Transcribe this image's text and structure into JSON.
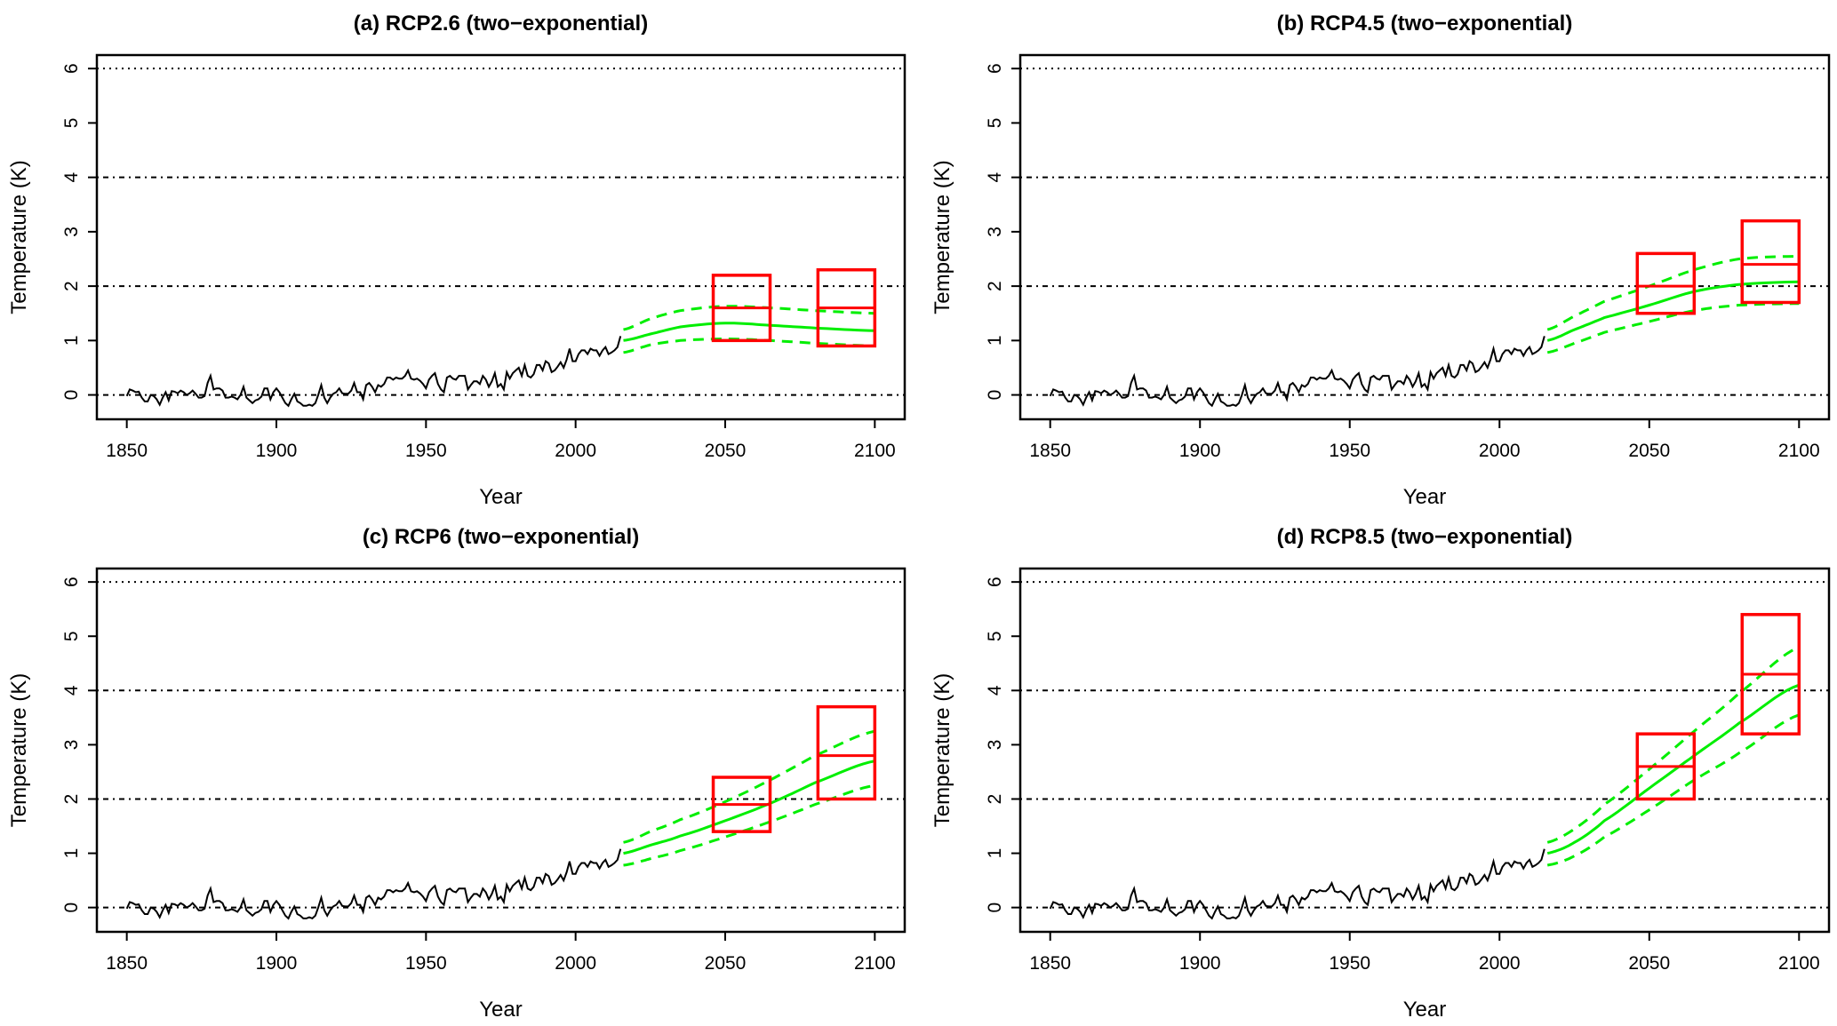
{
  "colors": {
    "observed": "#000000",
    "projection": "#00ee00",
    "box": "#ff0000",
    "grid": "#000000"
  },
  "observed_series": {
    "name": "Observed temperature",
    "start_year": 1850,
    "values": [
      -0.02,
      0.1,
      0.08,
      0.05,
      0.06,
      -0.05,
      -0.12,
      -0.12,
      0.0,
      -0.02,
      -0.08,
      -0.18,
      -0.05,
      0.05,
      -0.1,
      0.07,
      0.06,
      0.03,
      0.08,
      0.05,
      0.0,
      0.03,
      0.08,
      0.02,
      -0.05,
      -0.05,
      -0.02,
      0.22,
      0.35,
      0.1,
      0.12,
      0.12,
      0.08,
      -0.05,
      -0.05,
      -0.03,
      -0.05,
      -0.08,
      0.0,
      0.15,
      -0.05,
      -0.1,
      -0.15,
      -0.1,
      -0.08,
      -0.03,
      0.12,
      0.12,
      -0.08,
      0.05,
      0.12,
      0.05,
      -0.05,
      -0.15,
      -0.2,
      -0.08,
      0.02,
      -0.12,
      -0.15,
      -0.2,
      -0.2,
      -0.18,
      -0.2,
      -0.15,
      0.0,
      0.18,
      -0.05,
      -0.15,
      -0.05,
      0.02,
      0.05,
      0.12,
      0.03,
      0.02,
      0.02,
      0.08,
      0.22,
      0.05,
      0.05,
      -0.08,
      0.18,
      0.22,
      0.15,
      0.05,
      0.18,
      0.15,
      0.2,
      0.32,
      0.32,
      0.28,
      0.32,
      0.3,
      0.3,
      0.35,
      0.45,
      0.3,
      0.28,
      0.3,
      0.26,
      0.2,
      0.12,
      0.28,
      0.35,
      0.4,
      0.2,
      0.1,
      0.05,
      0.32,
      0.35,
      0.3,
      0.28,
      0.35,
      0.35,
      0.35,
      0.1,
      0.18,
      0.25,
      0.25,
      0.2,
      0.35,
      0.28,
      0.15,
      0.25,
      0.4,
      0.15,
      0.2,
      0.1,
      0.42,
      0.3,
      0.4,
      0.45,
      0.5,
      0.35,
      0.55,
      0.35,
      0.32,
      0.38,
      0.55,
      0.55,
      0.45,
      0.62,
      0.58,
      0.42,
      0.45,
      0.52,
      0.6,
      0.5,
      0.65,
      0.85,
      0.62,
      0.62,
      0.75,
      0.82,
      0.82,
      0.75,
      0.85,
      0.82,
      0.82,
      0.72,
      0.82,
      0.88,
      0.75,
      0.78,
      0.82,
      0.88,
      1.08
    ]
  },
  "chart_data": [
    {
      "type": "line",
      "title": "(a) RCP2.6 (two−exponential)",
      "xlabel": "Year",
      "ylabel": "Temperature (K)",
      "xlim": [
        1850,
        2100
      ],
      "ylim": [
        -0.2,
        6
      ],
      "x_ticks": [
        "1850",
        "1900",
        "1950",
        "2000",
        "2050",
        "2100"
      ],
      "y_ticks": [
        "0",
        "1",
        "2",
        "3",
        "4",
        "5",
        "6"
      ],
      "hlines": [
        {
          "y": 0,
          "style": "dotdash"
        },
        {
          "y": 2,
          "style": "dotdash"
        },
        {
          "y": 4,
          "style": "dotdash"
        },
        {
          "y": 6,
          "style": "dotted"
        }
      ],
      "projection_years": [
        2016,
        2025,
        2035,
        2050,
        2065,
        2080,
        2100
      ],
      "projection_mean": [
        1.0,
        1.12,
        1.25,
        1.32,
        1.28,
        1.23,
        1.18
      ],
      "projection_upper": [
        1.2,
        1.4,
        1.55,
        1.63,
        1.6,
        1.55,
        1.5
      ],
      "projection_lower": [
        0.78,
        0.92,
        1.0,
        1.03,
        1.0,
        0.95,
        0.9
      ],
      "boxes": [
        {
          "x0": 2046,
          "x1": 2065,
          "low": 1.0,
          "mid": 1.6,
          "high": 2.2
        },
        {
          "x0": 2081,
          "x1": 2100,
          "low": 0.9,
          "mid": 1.6,
          "high": 2.3
        }
      ]
    },
    {
      "type": "line",
      "title": "(b) RCP4.5 (two−exponential)",
      "xlabel": "Year",
      "ylabel": "Temperature (K)",
      "xlim": [
        1850,
        2100
      ],
      "ylim": [
        -0.2,
        6
      ],
      "x_ticks": [
        "1850",
        "1900",
        "1950",
        "2000",
        "2050",
        "2100"
      ],
      "y_ticks": [
        "0",
        "1",
        "2",
        "3",
        "4",
        "5",
        "6"
      ],
      "hlines": [
        {
          "y": 0,
          "style": "dotdash"
        },
        {
          "y": 2,
          "style": "dotdash"
        },
        {
          "y": 4,
          "style": "dotdash"
        },
        {
          "y": 6,
          "style": "dotted"
        }
      ],
      "projection_years": [
        2016,
        2025,
        2035,
        2050,
        2065,
        2080,
        2100
      ],
      "projection_mean": [
        1.0,
        1.2,
        1.42,
        1.65,
        1.9,
        2.03,
        2.08
      ],
      "projection_upper": [
        1.2,
        1.45,
        1.72,
        2.0,
        2.3,
        2.5,
        2.55
      ],
      "projection_lower": [
        0.78,
        0.95,
        1.15,
        1.35,
        1.55,
        1.65,
        1.68
      ],
      "boxes": [
        {
          "x0": 2046,
          "x1": 2065,
          "low": 1.5,
          "mid": 2.0,
          "high": 2.6
        },
        {
          "x0": 2081,
          "x1": 2100,
          "low": 1.7,
          "mid": 2.4,
          "high": 3.2
        }
      ]
    },
    {
      "type": "line",
      "title": "(c) RCP6 (two−exponential)",
      "xlabel": "Year",
      "ylabel": "Temperature (K)",
      "xlim": [
        1850,
        2100
      ],
      "ylim": [
        -0.2,
        6
      ],
      "x_ticks": [
        "1850",
        "1900",
        "1950",
        "2000",
        "2050",
        "2100"
      ],
      "y_ticks": [
        "0",
        "1",
        "2",
        "3",
        "4",
        "5",
        "6"
      ],
      "hlines": [
        {
          "y": 0,
          "style": "dotdash"
        },
        {
          "y": 2,
          "style": "dotdash"
        },
        {
          "y": 4,
          "style": "dotdash"
        },
        {
          "y": 6,
          "style": "dotted"
        }
      ],
      "projection_years": [
        2016,
        2025,
        2035,
        2050,
        2065,
        2080,
        2100
      ],
      "projection_mean": [
        1.0,
        1.15,
        1.32,
        1.6,
        1.92,
        2.3,
        2.7
      ],
      "projection_upper": [
        1.2,
        1.4,
        1.62,
        1.95,
        2.35,
        2.8,
        3.25
      ],
      "projection_lower": [
        0.78,
        0.9,
        1.05,
        1.3,
        1.58,
        1.9,
        2.25
      ],
      "boxes": [
        {
          "x0": 2046,
          "x1": 2065,
          "low": 1.4,
          "mid": 1.9,
          "high": 2.4
        },
        {
          "x0": 2081,
          "x1": 2100,
          "low": 2.0,
          "mid": 2.8,
          "high": 3.7
        }
      ]
    },
    {
      "type": "line",
      "title": "(d) RCP8.5 (two−exponential)",
      "xlabel": "Year",
      "ylabel": "Temperature (K)",
      "xlim": [
        1850,
        2100
      ],
      "ylim": [
        -0.2,
        6
      ],
      "x_ticks": [
        "1850",
        "1900",
        "1950",
        "2000",
        "2050",
        "2100"
      ],
      "y_ticks": [
        "0",
        "1",
        "2",
        "3",
        "4",
        "5",
        "6"
      ],
      "hlines": [
        {
          "y": 0,
          "style": "dotdash"
        },
        {
          "y": 2,
          "style": "dotdash"
        },
        {
          "y": 4,
          "style": "dotdash"
        },
        {
          "y": 6,
          "style": "dotted"
        }
      ],
      "projection_years": [
        2016,
        2025,
        2035,
        2050,
        2065,
        2080,
        2100
      ],
      "projection_mean": [
        1.0,
        1.2,
        1.6,
        2.2,
        2.8,
        3.4,
        4.1
      ],
      "projection_upper": [
        1.2,
        1.45,
        1.9,
        2.55,
        3.25,
        3.95,
        4.8
      ],
      "projection_lower": [
        0.78,
        0.95,
        1.3,
        1.8,
        2.35,
        2.85,
        3.55
      ],
      "boxes": [
        {
          "x0": 2046,
          "x1": 2065,
          "low": 2.0,
          "mid": 2.6,
          "high": 3.2
        },
        {
          "x0": 2081,
          "x1": 2100,
          "low": 3.2,
          "mid": 4.3,
          "high": 5.4
        }
      ]
    }
  ]
}
